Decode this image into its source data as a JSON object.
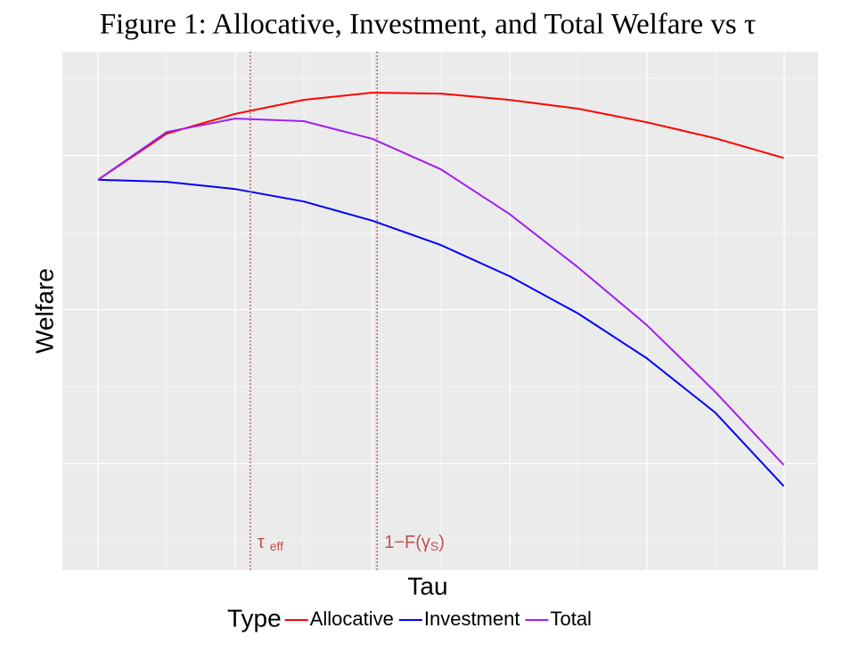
{
  "chart_data": {
    "type": "line",
    "title": "Figure 1: Allocative, Investment, and Total Welfare vs τ",
    "x_label": "Tau",
    "y_label": "Welfare",
    "legend_title": "Type",
    "legend_position": "bottom",
    "grid": true,
    "xlim": [
      -0.052,
      1.05
    ],
    "ylim": [
      0,
      1
    ],
    "x": [
      0,
      0.1,
      0.2,
      0.3,
      0.4,
      0.5,
      0.6,
      0.7,
      0.8,
      0.9,
      1
    ],
    "series": [
      {
        "name": "Allocative",
        "color": "#ff0000",
        "values": [
          0.753,
          0.842,
          0.88,
          0.907,
          0.921,
          0.919,
          0.907,
          0.89,
          0.864,
          0.833,
          0.795
        ]
      },
      {
        "name": "Investment",
        "color": "#0000ff",
        "values": [
          0.753,
          0.749,
          0.735,
          0.711,
          0.674,
          0.627,
          0.567,
          0.495,
          0.409,
          0.304,
          0.162
        ]
      },
      {
        "name": "Total",
        "color": "#a020f0",
        "values": [
          0.753,
          0.845,
          0.871,
          0.866,
          0.832,
          0.773,
          0.687,
          0.584,
          0.473,
          0.344,
          0.203
        ]
      }
    ],
    "vlines": [
      {
        "x": 0.222,
        "label": "τ",
        "sub": "eff",
        "suffix": ""
      },
      {
        "x": 0.407,
        "label": "1−F(γ",
        "sub": "S",
        "suffix": ")"
      }
    ],
    "vline_color": "#c0504d"
  }
}
